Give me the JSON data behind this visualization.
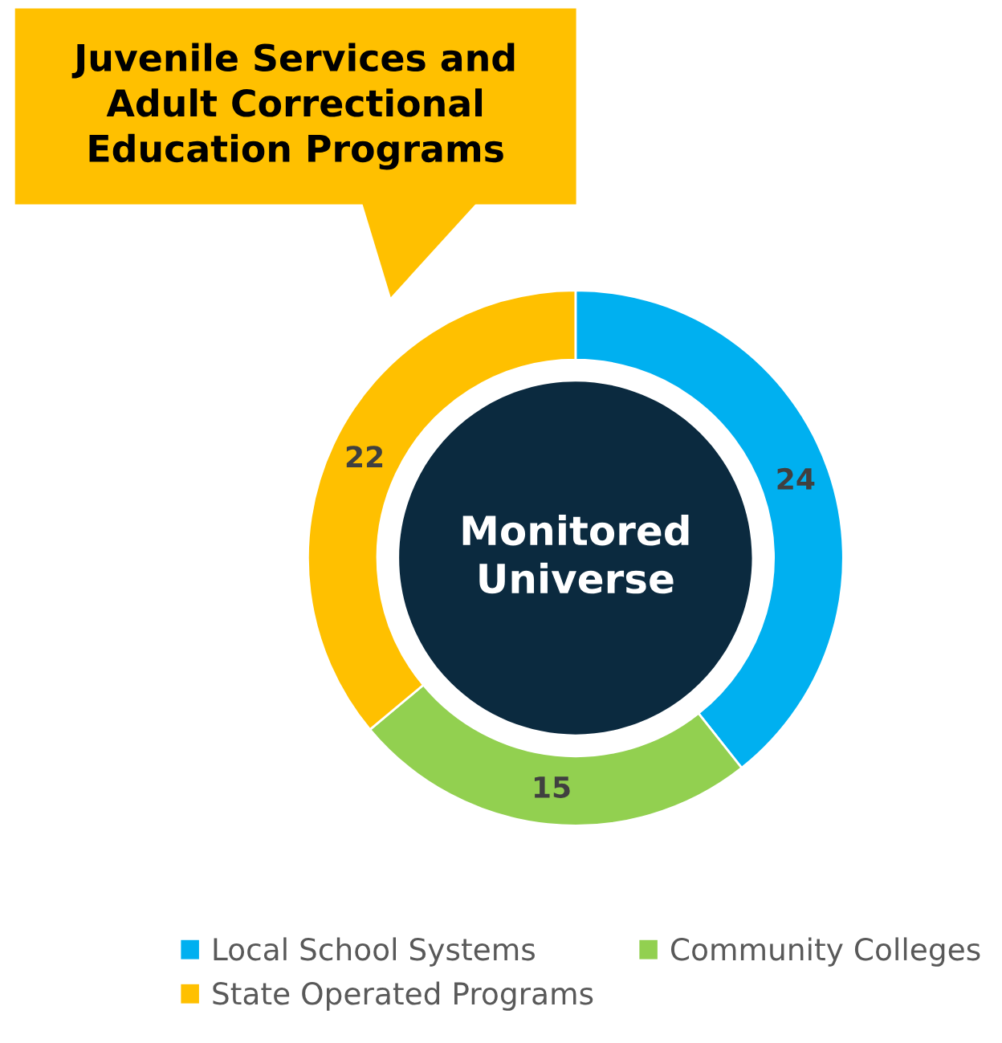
{
  "chart_data": {
    "type": "donut",
    "categories": [
      "Local School Systems",
      "Community Colleges",
      "State Operated Programs"
    ],
    "values": [
      24,
      15,
      22
    ],
    "colors": [
      "#00b0f0",
      "#92d050",
      "#ffc000"
    ],
    "data_labels": true,
    "legend": "bottom",
    "annotations": [
      "Juvenile Services and\nAdult Correctional\nEducation Programs",
      "Monitored\nUniverse"
    ]
  }
}
